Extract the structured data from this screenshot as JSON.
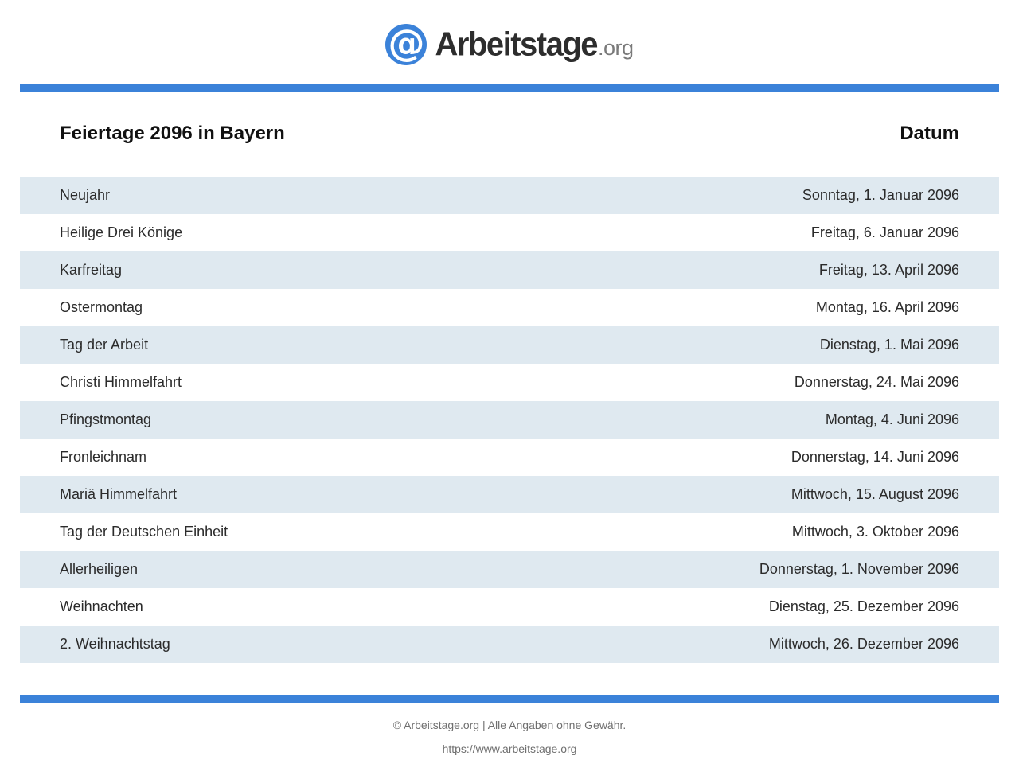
{
  "brand": {
    "mark": "@",
    "name": "Arbeitstage",
    "tld": ".org",
    "accent": "#3b82d9",
    "row_alt_bg": "#dfe9f0"
  },
  "table": {
    "title": "Feiertage 2096 in Bayern",
    "date_header": "Datum",
    "rows": [
      {
        "name": "Neujahr",
        "date": "Sonntag, 1. Januar 2096"
      },
      {
        "name": "Heilige Drei Könige",
        "date": "Freitag, 6. Januar 2096"
      },
      {
        "name": "Karfreitag",
        "date": "Freitag, 13. April 2096"
      },
      {
        "name": "Ostermontag",
        "date": "Montag, 16. April 2096"
      },
      {
        "name": "Tag der Arbeit",
        "date": "Dienstag, 1. Mai 2096"
      },
      {
        "name": "Christi Himmelfahrt",
        "date": "Donnerstag, 24. Mai 2096"
      },
      {
        "name": "Pfingstmontag",
        "date": "Montag, 4. Juni 2096"
      },
      {
        "name": "Fronleichnam",
        "date": "Donnerstag, 14. Juni 2096"
      },
      {
        "name": "Mariä Himmelfahrt",
        "date": "Mittwoch, 15. August 2096"
      },
      {
        "name": "Tag der Deutschen Einheit",
        "date": "Mittwoch, 3. Oktober 2096"
      },
      {
        "name": "Allerheiligen",
        "date": "Donnerstag, 1. November 2096"
      },
      {
        "name": "Weihnachten",
        "date": "Dienstag, 25. Dezember 2096"
      },
      {
        "name": "2. Weihnachtstag",
        "date": "Mittwoch, 26. Dezember 2096"
      }
    ]
  },
  "footer": {
    "copyright": "© Arbeitstage.org | Alle Angaben ohne Gewähr.",
    "url": "https://www.arbeitstage.org"
  }
}
